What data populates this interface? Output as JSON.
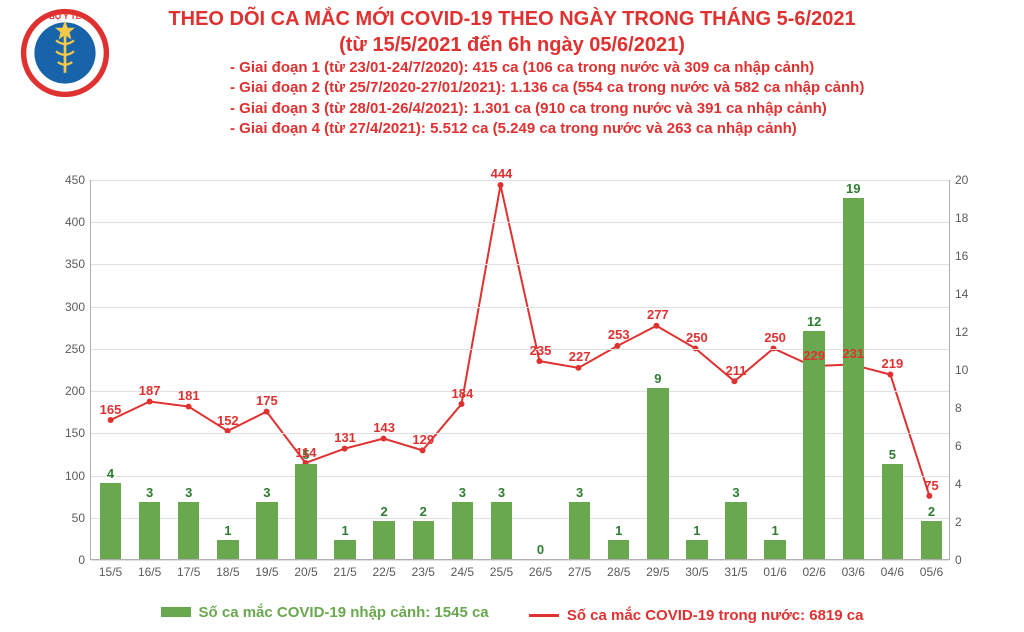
{
  "title": {
    "line1": "THEO DÕI CA MẮC MỚI COVID-19 THEO NGÀY TRONG THÁNG 5-6/2021",
    "line2": "(từ 15/5/2021 đến 6h ngày 05/6/2021)",
    "color": "#e03131",
    "fontsize": 20
  },
  "phases": [
    "- Giai đoạn 1 (từ 23/01-24/7/2020): 415 ca (106 ca trong nước và 309 ca nhập cảnh)",
    "- Giai đoạn 2 (từ 25/7/2020-27/01/2021): 1.136 ca (554 ca trong nước và 582 ca nhập cảnh)",
    "- Giai đoạn 3 (từ 28/01-26/4/2021): 1.301 ca (910 ca trong nước và 391 ca nhập cảnh)",
    "- Giai đoạn 4 (từ 27/4/2021): 5.512 ca (5.249 ca trong nước và 263 ca nhập cảnh)"
  ],
  "chart": {
    "type": "combo-bar-line",
    "background_color": "#ffffff",
    "grid_color": "#e0e0e0",
    "axis_color": "#b0b0b0",
    "bar_color": "#6aa84f",
    "bar_label_color": "#2e7d32",
    "line_color": "#e03131",
    "line_label_color": "#e03131",
    "line_width": 2,
    "bar_width": 0.55,
    "categories": [
      "15/5",
      "16/5",
      "17/5",
      "18/5",
      "19/5",
      "20/5",
      "21/5",
      "22/5",
      "23/5",
      "24/5",
      "25/5",
      "26/5",
      "27/5",
      "28/5",
      "29/5",
      "30/5",
      "31/5",
      "01/6",
      "02/6",
      "03/6",
      "04/6",
      "05/6"
    ],
    "bar_values": [
      4,
      3,
      3,
      1,
      3,
      5,
      1,
      2,
      2,
      3,
      3,
      0,
      3,
      1,
      9,
      1,
      3,
      1,
      12,
      19,
      5,
      2
    ],
    "line_values": [
      165,
      187,
      181,
      152,
      175,
      114,
      131,
      143,
      129,
      184,
      444,
      235,
      227,
      253,
      277,
      250,
      211,
      250,
      229,
      231,
      219,
      75
    ],
    "y_left": {
      "min": 0,
      "max": 450,
      "step": 50,
      "label_fontsize": 12
    },
    "y_right": {
      "min": 0,
      "max": 20,
      "step": 2,
      "label_fontsize": 12
    },
    "x_label_fontsize": 12,
    "value_label_fontsize": 13
  },
  "legend": {
    "bar": {
      "text": "Số ca mắc COVID-19 nhập cảnh: 1545 ca",
      "color": "#6aa84f"
    },
    "line": {
      "text": "Số ca mắc COVID-19 trong nước: 6819 ca",
      "color": "#e03131"
    }
  },
  "logo": {
    "outer_color": "#e03131",
    "inner_color": "#1864ab",
    "top_text": "BỘ Y TẾ",
    "star_color": "#f6c948"
  }
}
